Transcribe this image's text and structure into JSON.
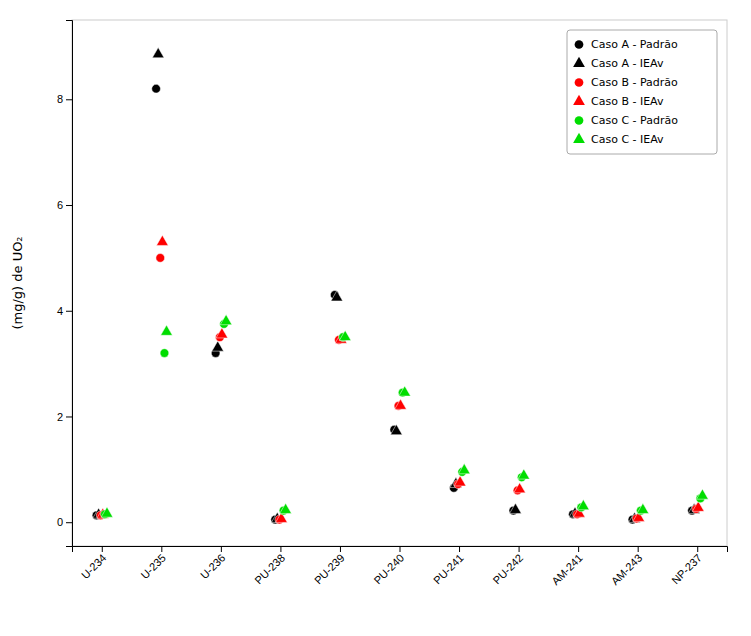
{
  "chart_data": {
    "type": "scatter",
    "categories": [
      "U-234",
      "U-235",
      "U-236",
      "PU-238",
      "PU-239",
      "PU-240",
      "PU-241",
      "PU-242",
      "AM-241",
      "AM-243",
      "NP-237"
    ],
    "series": [
      {
        "name": "Caso A - Padrão",
        "color": "black",
        "marker": "circle",
        "values": [
          0.13,
          8.2,
          3.2,
          0.05,
          4.3,
          1.75,
          0.65,
          0.22,
          0.15,
          0.05,
          0.22
        ]
      },
      {
        "name": "Caso A - IEAv",
        "color": "black",
        "marker": "triangle",
        "values": [
          0.14,
          8.85,
          3.3,
          0.06,
          4.25,
          1.72,
          0.72,
          0.23,
          0.16,
          0.06,
          0.23
        ]
      },
      {
        "name": "Caso B - Padrão",
        "color": "red",
        "marker": "circle",
        "values": [
          0.13,
          5.0,
          3.5,
          0.05,
          3.45,
          2.2,
          0.72,
          0.6,
          0.15,
          0.07,
          0.25
        ]
      },
      {
        "name": "Caso B - IEAv",
        "color": "red",
        "marker": "triangle",
        "values": [
          0.14,
          5.3,
          3.55,
          0.06,
          3.45,
          2.2,
          0.75,
          0.62,
          0.16,
          0.08,
          0.27
        ]
      },
      {
        "name": "Caso C - Padrão",
        "color": "#00dd00",
        "marker": "circle",
        "values": [
          0.15,
          3.2,
          3.75,
          0.22,
          3.5,
          2.45,
          0.95,
          0.85,
          0.28,
          0.22,
          0.45
        ]
      },
      {
        "name": "Caso C - IEAv",
        "color": "#00dd00",
        "marker": "triangle",
        "values": [
          0.16,
          3.6,
          3.8,
          0.23,
          3.5,
          2.45,
          0.98,
          0.88,
          0.3,
          0.23,
          0.5
        ]
      }
    ],
    "ylabel": "(mg/g) de UO₂",
    "ylim": [
      -0.45,
      9.5
    ],
    "yticks": [
      0,
      2,
      4,
      6,
      8
    ],
    "grid": false,
    "legend": "upper-right"
  }
}
